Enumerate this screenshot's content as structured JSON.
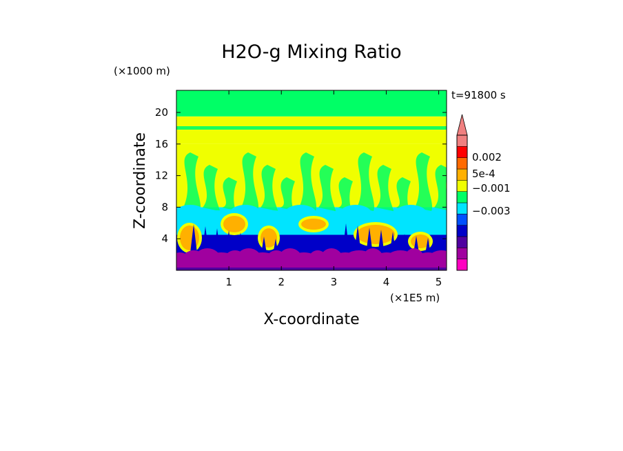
{
  "chart_data": {
    "type": "heatmap",
    "title": "H2O-g Mixing Ratio",
    "xlabel": "X-coordinate",
    "ylabel": "Z-coordinate",
    "x_unit": "(×1E5 m)",
    "y_unit": "(×1000 m)",
    "time_label": "t=91800 s",
    "xlim": [
      0,
      5.15
    ],
    "ylim": [
      0,
      22.8
    ],
    "x_ticks": [
      1,
      2,
      3,
      4,
      5
    ],
    "y_ticks": [
      4,
      8,
      12,
      16,
      20
    ],
    "colorbar": {
      "colors": [
        "#ff00c0",
        "#a0009f",
        "#5000a0",
        "#0000c8",
        "#0050ff",
        "#00e4ff",
        "#00ff66",
        "#f0ff00",
        "#ffb000",
        "#ff6a00",
        "#ff0000",
        "#f08080"
      ],
      "labels": [
        "0.002",
        "5e-4",
        "−0.001",
        "−0.003"
      ],
      "extend_top": true
    },
    "field_bands": [
      {
        "z_from": 0.0,
        "z_to": 1.5,
        "level": "#5000a0"
      },
      {
        "z_from": 1.5,
        "z_to": 4.5,
        "level": "#0000c8"
      },
      {
        "z_from": 4.5,
        "z_to": 8.0,
        "level": "#00e4ff"
      },
      {
        "z_from": 8.0,
        "z_to": 16.0,
        "level": "#f0ff00"
      },
      {
        "z_from": 16.0,
        "z_to": 19.5,
        "level": "#f0ff00"
      },
      {
        "z_from": 19.5,
        "z_to": 22.8,
        "level": "#00ff66"
      }
    ]
  }
}
